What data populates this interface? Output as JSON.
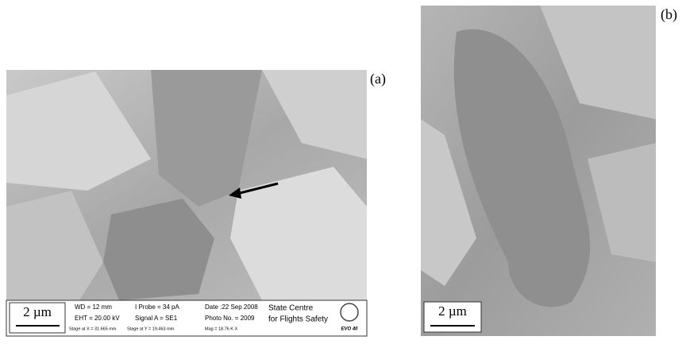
{
  "panels": [
    {
      "label": "(a)",
      "scale_bar": "2 µm",
      "info": {
        "wd": "WD =  12 mm",
        "eht": "EHT = 20.00 kV",
        "probe": "I Probe =   34 pA",
        "signal": "Signal A = SE1",
        "date": "Date :22 Sep 2008",
        "photo": "Photo No. = 2009",
        "org_line1": "State Centre",
        "org_line2": "for Flights Safety",
        "stage_x": "Stage at X = 31.665 mm",
        "stage_y": "Stage at Y = 19.463 mm",
        "mag": "Mag =  18.76 K X",
        "model": "EVO 40"
      }
    },
    {
      "label": "(b)",
      "scale_bar": "2 µm"
    }
  ]
}
